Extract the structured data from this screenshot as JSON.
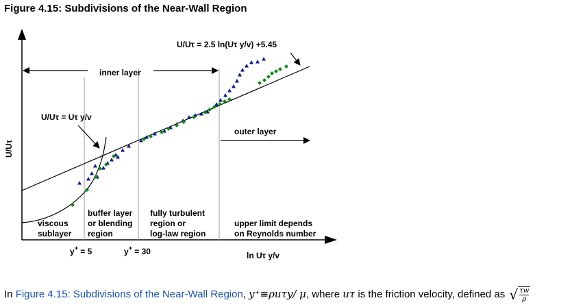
{
  "figure": {
    "title": "Figure 4.15: Subdivisions of the Near-Wall Region",
    "y_axis_label": "U/Uτ",
    "x_axis_label": "ln Uτ y/v",
    "log_law_eq": "U/Uτ = 2.5 ln(Uτ y/v) +5.45",
    "linear_eq": "U/Uτ = Uτ y/v",
    "inner_layer": "inner layer",
    "outer_layer": "outer layer",
    "viscous": [
      "viscous",
      "sublayer"
    ],
    "buffer": [
      "buffer layer",
      "or blending",
      "region"
    ],
    "turbulent": [
      "fully turbulent",
      "region or",
      "log-law region"
    ],
    "upper": [
      "upper limit depends",
      "on Reynolds number"
    ],
    "yplus5": "y",
    "yplus5_sup": "+",
    "yplus5_val": " = 5",
    "yplus30": "y",
    "yplus30_sup": "+",
    "yplus30_val": " = 30",
    "colors": {
      "triangles": "#0a1a8c",
      "diamonds": "#128a12"
    }
  },
  "caption": {
    "prefix": "In ",
    "link": "Figure 4.15: Subdivisions of the Near-Wall Region",
    "mid": ", ",
    "formula": "y⁺≡ρuτy/ μ",
    "after": ", where ",
    "var": "uτ",
    "suffix": " is the friction velocity, defined as ",
    "sqrt_num": "τw",
    "sqrt_den": "ρ"
  }
}
